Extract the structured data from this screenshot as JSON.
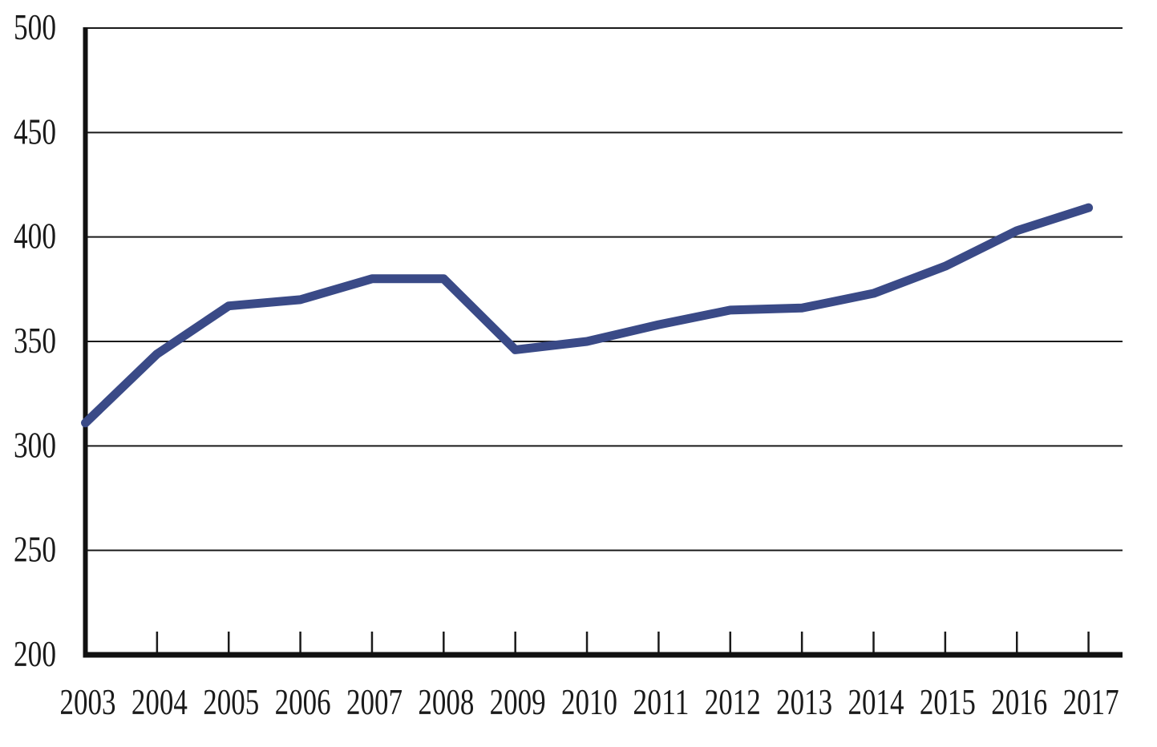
{
  "figure": {
    "background": "#ffffff"
  },
  "chart_data": {
    "type": "line",
    "title": "",
    "xlabel": "",
    "ylabel": "",
    "categories": [
      "2003",
      "2004",
      "2005",
      "2006",
      "2007",
      "2008",
      "2009",
      "2010",
      "2011",
      "2012",
      "2013",
      "2014",
      "2015",
      "2016",
      "2017"
    ],
    "values": [
      311,
      344,
      367,
      370,
      380,
      380,
      346,
      350,
      358,
      365,
      366,
      373,
      386,
      403,
      414
    ],
    "ylim": [
      200,
      500
    ],
    "y_ticks": [
      200,
      250,
      300,
      350,
      400,
      450,
      500
    ],
    "grid": true,
    "legend": false,
    "line_color": "#3A4A87",
    "grid_color": "#1a1a1a",
    "axis_color": "#111111",
    "tick_label_color": "#1a1a1a"
  }
}
